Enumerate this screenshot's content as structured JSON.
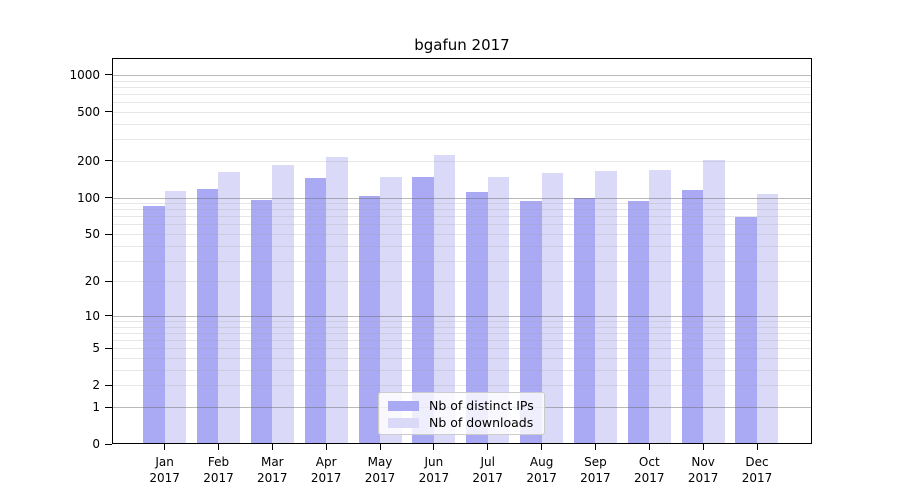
{
  "chart_data": {
    "type": "bar",
    "title": "bgafun 2017",
    "categories": [
      "Jan",
      "Feb",
      "Mar",
      "Apr",
      "May",
      "Jun",
      "Jul",
      "Aug",
      "Sep",
      "Oct",
      "Nov",
      "Dec"
    ],
    "category_year": "2017",
    "series": [
      {
        "name": "Nb of distinct IPs",
        "color": "#a9a9f4",
        "values": [
          85,
          118,
          95,
          145,
          102,
          148,
          111,
          93,
          99,
          94,
          115,
          69
        ]
      },
      {
        "name": "Nb of downloads",
        "color": "#dadaf8",
        "values": [
          114,
          161,
          183,
          216,
          146,
          221,
          146,
          158,
          166,
          169,
          202,
          107
        ]
      }
    ],
    "yscale": "log10(value+1)",
    "ytick_labels": [
      0,
      1,
      2,
      5,
      10,
      20,
      50,
      100,
      200,
      500,
      1000
    ],
    "ylim": [
      0,
      1370
    ],
    "grid": true,
    "legend_position": "lower center"
  },
  "style": {
    "background": "#ffffff",
    "axis_color": "#000000",
    "major_grid_color": "rgba(100,100,100,0.45)",
    "minor_grid_color": "rgba(165,165,165,0.28)",
    "legend_background": "rgba(255,255,255,0.8)",
    "legend_border": "#cccccc",
    "text_color": "#000000"
  }
}
